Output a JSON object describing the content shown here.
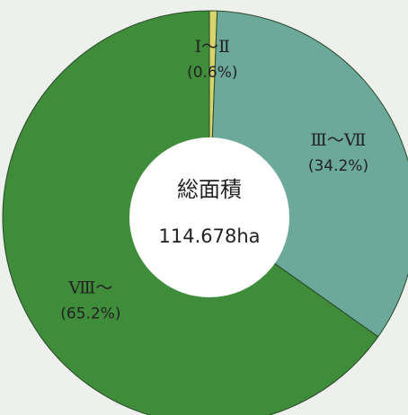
{
  "chart_data": {
    "type": "donut",
    "center_label": "総面積",
    "center_value": "114.678ha",
    "categories": [
      "Ⅰ～Ⅱ",
      "Ⅲ～Ⅶ",
      "Ⅷ～"
    ],
    "values": [
      0.6,
      34.2,
      65.2
    ],
    "value_labels": [
      "(0.6%)",
      "(34.2%)",
      "(65.2%)"
    ],
    "colors": [
      "#d6d46a",
      "#6ca99a",
      "#3f8c3a"
    ]
  }
}
